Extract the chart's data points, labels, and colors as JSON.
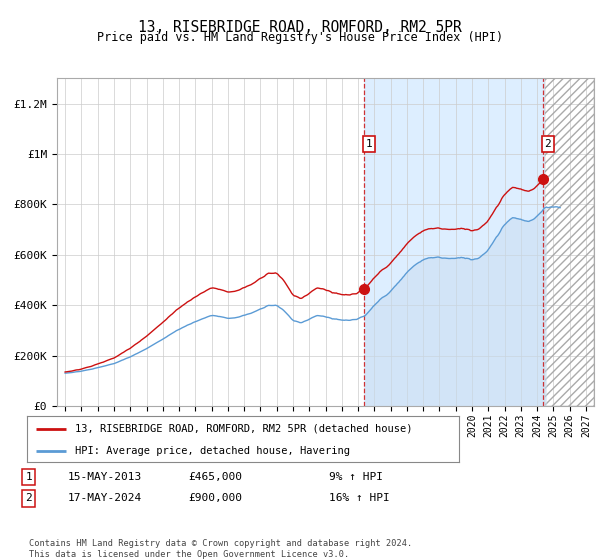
{
  "title": "13, RISEBRIDGE ROAD, ROMFORD, RM2 5PR",
  "subtitle": "Price paid vs. HM Land Registry's House Price Index (HPI)",
  "legend_line1": "13, RISEBRIDGE ROAD, ROMFORD, RM2 5PR (detached house)",
  "legend_line2": "HPI: Average price, detached house, Havering",
  "annotation1_date": "15-MAY-2013",
  "annotation1_price": 465000,
  "annotation1_pct": "9% ↑ HPI",
  "annotation2_date": "17-MAY-2024",
  "annotation2_price": 900000,
  "annotation2_pct": "16% ↑ HPI",
  "footer": "Contains HM Land Registry data © Crown copyright and database right 2024.\nThis data is licensed under the Open Government Licence v3.0.",
  "hpi_color": "#5b9bd5",
  "price_color": "#cc1111",
  "ylim": [
    0,
    1300000
  ],
  "yticks": [
    0,
    200000,
    400000,
    600000,
    800000,
    1000000,
    1200000
  ],
  "ytick_labels": [
    "£0",
    "£200K",
    "£400K",
    "£600K",
    "£800K",
    "£1M",
    "£1.2M"
  ],
  "xmin": 1994.5,
  "xmax": 2027.5,
  "sale1_x": 2013.37,
  "sale1_y": 465000,
  "sale2_x": 2024.37,
  "sale2_y": 900000,
  "future_start": 2024.5,
  "shade_start": 2013.37,
  "background_main": "#ddeeff",
  "background_future": "#e8eef5"
}
